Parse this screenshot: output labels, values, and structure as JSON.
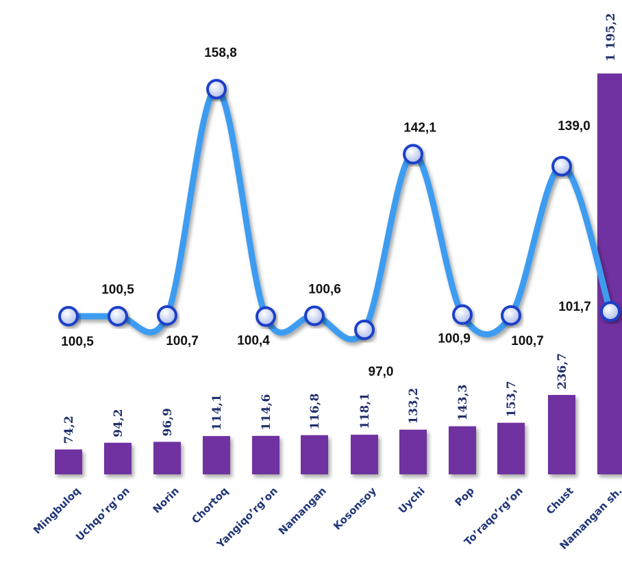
{
  "chart_data": {
    "type": "combo",
    "categories": [
      "Mingbuloq",
      "Uchqo’rg’on",
      "Norin",
      "Chortoq",
      "Yangiqo’rg’on",
      "Namangan",
      "Kosonsoy",
      "Uychi",
      "Pop",
      "To’raqo’rg’on",
      "Chust",
      "Namangan sh."
    ],
    "series": [
      {
        "type": "bar",
        "color": "#7030a0",
        "values": [
          74.2,
          94.2,
          96.9,
          114.1,
          114.6,
          116.8,
          118.1,
          133.2,
          143.3,
          153.7,
          236.7,
          1195.2
        ],
        "value_labels": [
          "74,2",
          "94,2",
          "96,9",
          "114,1",
          "114,6",
          "116,8",
          "118,1",
          "133,2",
          "143,3",
          "153,7",
          "236,7",
          "1 195,2"
        ]
      },
      {
        "type": "line",
        "color": "#3d9cf0",
        "values": [
          100.5,
          100.5,
          100.7,
          158.8,
          100.4,
          100.6,
          97.0,
          142.1,
          100.9,
          100.7,
          139.0,
          101.7
        ],
        "value_labels": [
          "100,5",
          "100,5",
          "100,7",
          "158,8",
          "100,4",
          "100,6",
          "97,0",
          "142,1",
          "100,9",
          "100,7",
          "139,0",
          "101,7"
        ]
      }
    ]
  }
}
